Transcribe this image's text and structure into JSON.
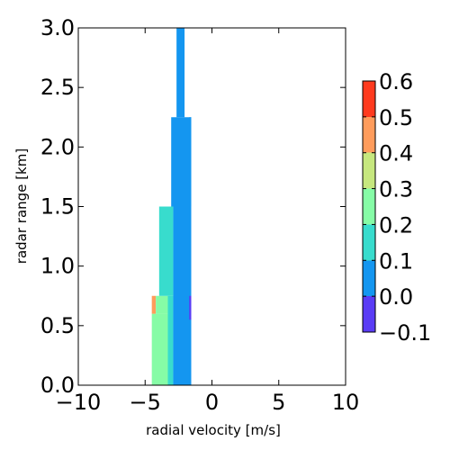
{
  "chart_data": {
    "type": "heatmap",
    "title": "",
    "xlabel": "radial velocity [m/s]",
    "ylabel": "radar range [km]",
    "xlim": [
      -10,
      10
    ],
    "ylim": [
      0.0,
      3.0
    ],
    "xticks": [
      -10,
      -5,
      0,
      5,
      10
    ],
    "xtick_labels": [
      "−10",
      "−5",
      "0",
      "5",
      "10"
    ],
    "yticks": [
      0.0,
      0.5,
      1.0,
      1.5,
      2.0,
      2.5,
      3.0
    ],
    "ytick_labels": [
      "0.0",
      "0.5",
      "1.0",
      "1.5",
      "2.0",
      "2.5",
      "3.0"
    ],
    "grid": false,
    "colorbar": {
      "min": -0.1,
      "max": 0.6,
      "ticks": [
        -0.1,
        0.0,
        0.1,
        0.2,
        0.3,
        0.4,
        0.5,
        0.6
      ],
      "tick_labels": [
        "−0.1",
        "0.0",
        "0.1",
        "0.2",
        "0.3",
        "0.4",
        "0.5",
        "0.6"
      ],
      "colormap": "rainbow",
      "position": "right"
    },
    "segments": [
      {
        "y": [
          0.0,
          0.75
        ],
        "v_left": [
          -4.5,
          -4.5
        ],
        "v_right": [
          -1.55,
          -1.55
        ],
        "value": 0.25
      },
      {
        "y": [
          0.75,
          1.5
        ],
        "v_left": [
          -3.95,
          -3.95
        ],
        "v_right": [
          -1.55,
          -1.55
        ],
        "value": 0.15
      },
      {
        "y": [
          1.5,
          2.25
        ],
        "v_left": [
          -3.05,
          -3.05
        ],
        "v_right": [
          -1.55,
          -1.55
        ],
        "value": 0.05
      },
      {
        "y": [
          2.25,
          3.0
        ],
        "v_left": [
          -2.65,
          -2.65
        ],
        "v_right": [
          -2.05,
          -2.05
        ],
        "value": 0.05
      }
    ],
    "cells": [
      {
        "y": [
          0.0,
          0.6
        ],
        "v": [
          -4.5,
          -3.3
        ],
        "value": 0.25
      },
      {
        "y": [
          0.6,
          0.75
        ],
        "v": [
          -4.5,
          -4.2
        ],
        "value": 0.45
      },
      {
        "y": [
          0.6,
          0.75
        ],
        "v": [
          -4.2,
          -3.3
        ],
        "value": 0.22
      },
      {
        "y": [
          0.0,
          0.75
        ],
        "v": [
          -3.3,
          -2.9
        ],
        "value": 0.17
      },
      {
        "y": [
          0.0,
          1.5
        ],
        "v": [
          -2.9,
          -1.55
        ],
        "value": 0.05
      },
      {
        "y": [
          0.55,
          0.75
        ],
        "v": [
          -1.7,
          -1.55
        ],
        "value": -0.05
      },
      {
        "y": [
          0.75,
          1.5
        ],
        "v": [
          -3.95,
          -3.3
        ],
        "value": 0.18
      },
      {
        "y": [
          0.75,
          1.5
        ],
        "v": [
          -3.3,
          -2.9
        ],
        "value": 0.13
      },
      {
        "y": [
          1.5,
          2.25
        ],
        "v": [
          -3.05,
          -1.55
        ],
        "value": 0.05
      },
      {
        "y": [
          1.5,
          2.25
        ],
        "v": [
          -1.7,
          -1.55
        ],
        "value": 0.04
      },
      {
        "y": [
          2.25,
          3.0
        ],
        "v": [
          -2.65,
          -2.05
        ],
        "value": 0.05
      }
    ]
  }
}
